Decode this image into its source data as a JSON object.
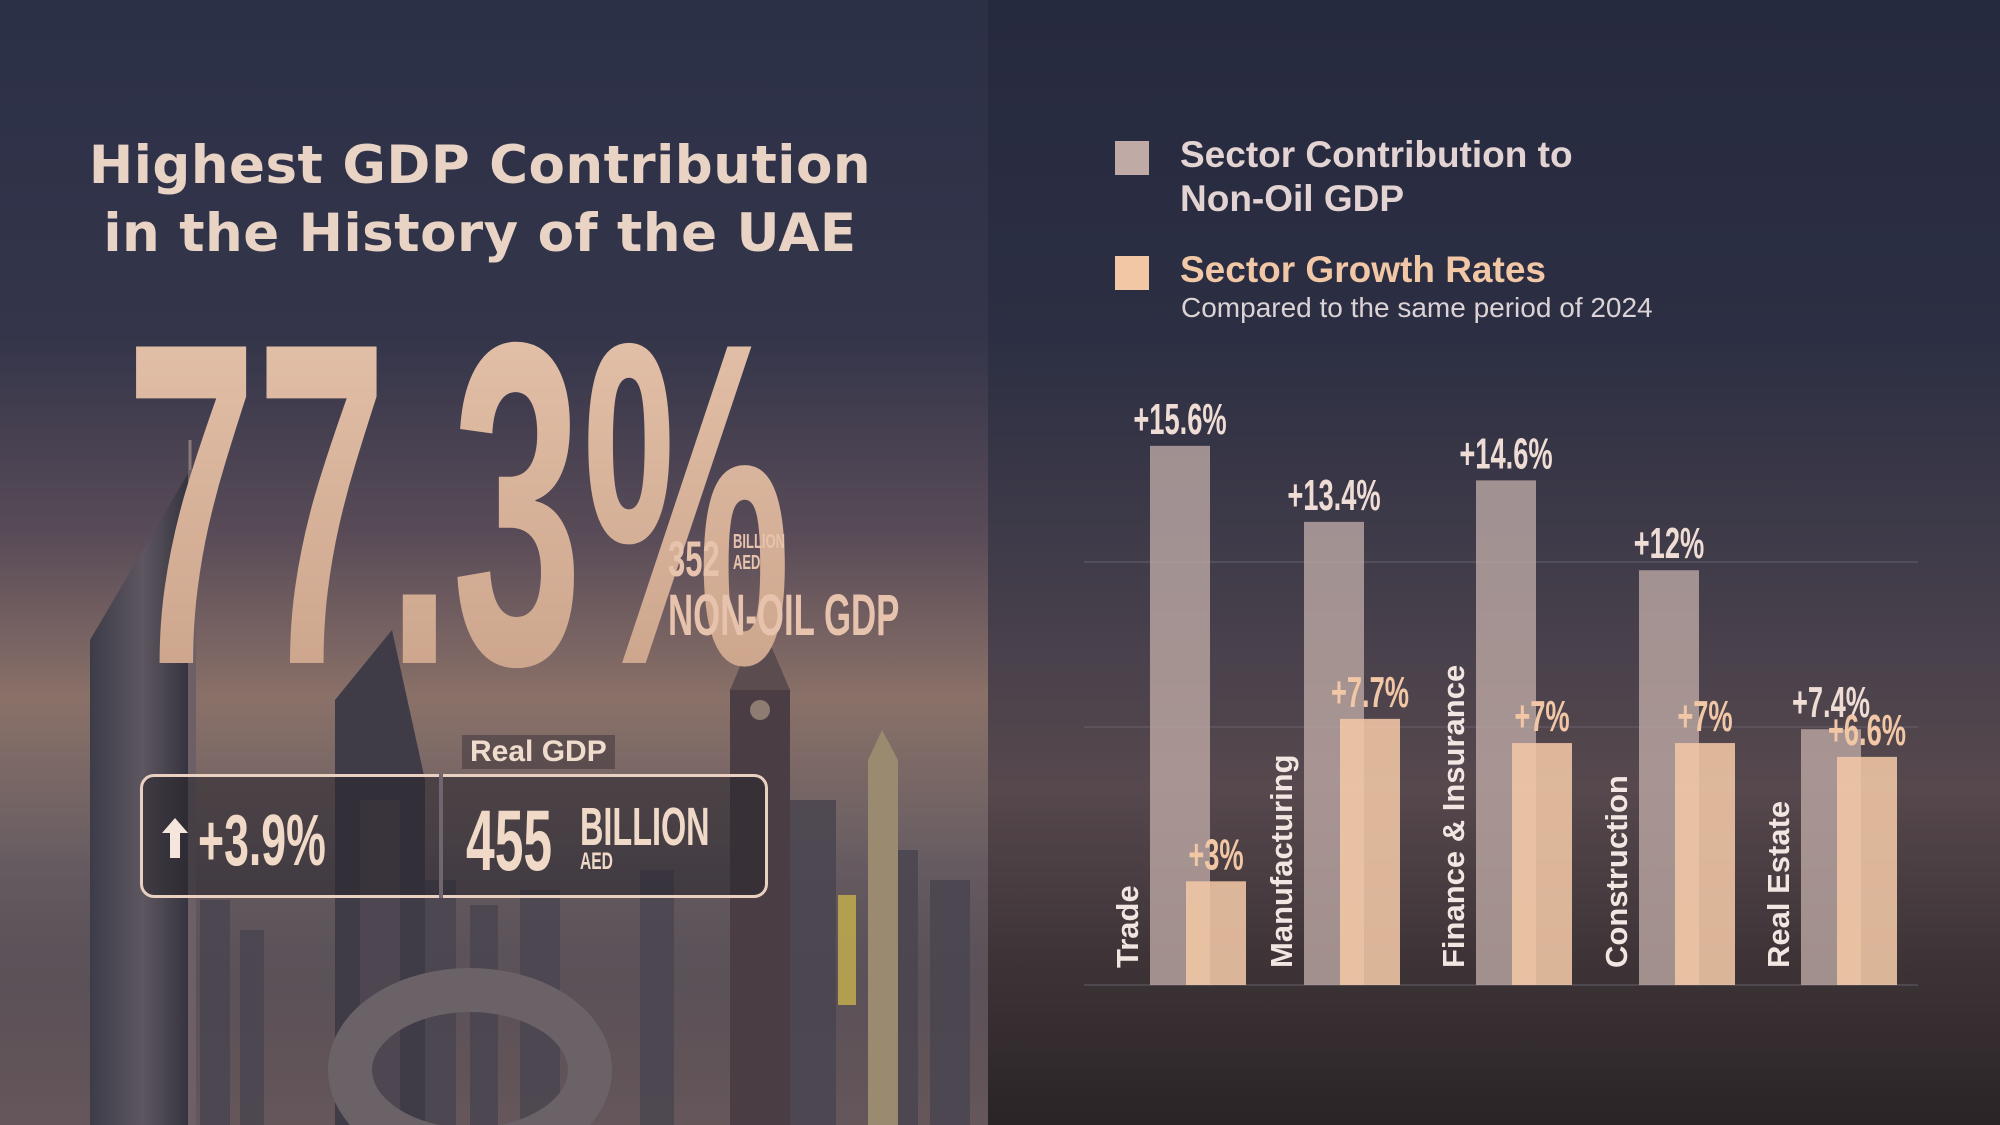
{
  "headline": {
    "line1": "Highest GDP Contribution",
    "line2": "in the History of the UAE"
  },
  "non_oil_share": {
    "value": "77.3%",
    "amount": "352",
    "unit_top": "BILLION",
    "unit_bottom": "AED",
    "label": "NON-OIL GDP"
  },
  "real_gdp": {
    "label": "Real GDP",
    "growth": "+3.9%",
    "value": "455",
    "unit": "BILLION",
    "currency": "AED"
  },
  "legend": {
    "contribution": {
      "line1": "Sector Contribution to",
      "line2": "Non-Oil GDP",
      "color": "#bfaaa6"
    },
    "growth": {
      "title": "Sector Growth Rates",
      "subtitle": "Compared to the same period of 2024",
      "color": "#f1c7a6"
    }
  },
  "colors": {
    "title": "#e9d3c4",
    "accent": "#f1c7a6",
    "bar_contribution": "#bfaaa6",
    "bar_growth": "#f1c7a6"
  },
  "chart_data": {
    "type": "bar",
    "categories": [
      "Trade",
      "Manufacturing",
      "Finance & Insurance",
      "Construction",
      "Real Estate"
    ],
    "series": [
      {
        "name": "Sector Contribution to Non-Oil GDP",
        "values": [
          15.6,
          13.4,
          14.6,
          12,
          7.4
        ],
        "labels": [
          "+15.6%",
          "+13.4%",
          "+14.6%",
          "+12%",
          "+7.4%"
        ]
      },
      {
        "name": "Sector Growth Rates",
        "values": [
          3,
          7.7,
          7,
          7,
          6.6
        ],
        "labels": [
          "+3%",
          "+7.7%",
          "+7%",
          "+7%",
          "+6.6%"
        ]
      }
    ],
    "ylim": [
      0,
      16
    ]
  }
}
